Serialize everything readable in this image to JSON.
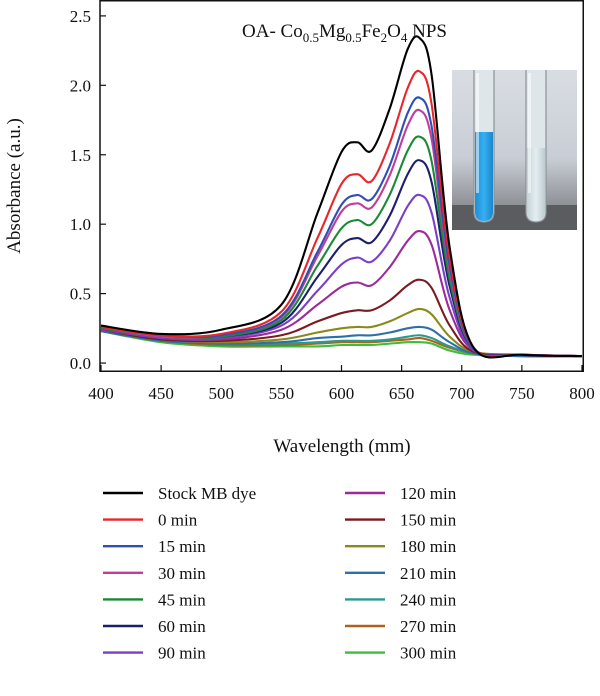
{
  "chart_data": {
    "type": "line",
    "title": "",
    "annotation": {
      "prefix": "OA- Co",
      "s1": "0.5",
      "t2": "Mg",
      "s2": "0.5",
      "t3": "Fe",
      "s3": "2",
      "t4": "O",
      "s4": "4",
      "suffix": " NPS"
    },
    "xlabel": "Wavelength (mm)",
    "ylabel": "Absorbance (a.u.)",
    "xlim": [
      400,
      800
    ],
    "ylim": [
      -0.05,
      2.6
    ],
    "xticks": [
      400,
      450,
      500,
      550,
      600,
      650,
      700,
      750,
      800
    ],
    "yticks": [
      0.0,
      0.5,
      1.0,
      1.5,
      2.0,
      2.5
    ],
    "ytick_labels": [
      "0.0",
      "0.5",
      "1.0",
      "1.5",
      "2.0",
      "2.5"
    ],
    "grid": false,
    "legend_position": "bottom",
    "inset": "photo of two test tubes: blue dye solution (left) and decolorized solution (right)",
    "x": [
      400,
      450,
      500,
      550,
      580,
      600,
      613,
      625,
      640,
      655,
      665,
      675,
      690,
      710,
      750,
      800
    ],
    "series": [
      {
        "name": "Stock MB dye",
        "color": "#000000",
        "values": [
          0.27,
          0.21,
          0.24,
          0.42,
          1.08,
          1.52,
          1.59,
          1.53,
          1.83,
          2.26,
          2.34,
          2.07,
          0.83,
          0.11,
          0.06,
          0.05
        ]
      },
      {
        "name": "0 min",
        "color": "#e8262b",
        "values": [
          0.26,
          0.2,
          0.21,
          0.37,
          0.9,
          1.29,
          1.36,
          1.31,
          1.58,
          1.98,
          2.1,
          1.86,
          0.75,
          0.11,
          0.06,
          0.05
        ]
      },
      {
        "name": "15 min",
        "color": "#2e4fb5",
        "values": [
          0.26,
          0.2,
          0.2,
          0.34,
          0.8,
          1.14,
          1.21,
          1.18,
          1.42,
          1.8,
          1.91,
          1.7,
          0.7,
          0.1,
          0.06,
          0.05
        ]
      },
      {
        "name": "30 min",
        "color": "#c23c9c",
        "values": [
          0.26,
          0.19,
          0.2,
          0.33,
          0.77,
          1.09,
          1.15,
          1.12,
          1.35,
          1.71,
          1.82,
          1.61,
          0.66,
          0.1,
          0.06,
          0.05
        ]
      },
      {
        "name": "45 min",
        "color": "#1a8a34",
        "values": [
          0.25,
          0.19,
          0.19,
          0.31,
          0.7,
          0.97,
          1.03,
          1.0,
          1.21,
          1.53,
          1.63,
          1.45,
          0.6,
          0.1,
          0.06,
          0.05
        ]
      },
      {
        "name": "60 min",
        "color": "#1c1f6e",
        "values": [
          0.25,
          0.19,
          0.19,
          0.29,
          0.62,
          0.85,
          0.9,
          0.87,
          1.06,
          1.36,
          1.46,
          1.3,
          0.55,
          0.1,
          0.06,
          0.05
        ]
      },
      {
        "name": "90 min",
        "color": "#7a3fc7",
        "values": [
          0.25,
          0.18,
          0.18,
          0.27,
          0.52,
          0.71,
          0.76,
          0.73,
          0.88,
          1.13,
          1.21,
          1.08,
          0.47,
          0.09,
          0.06,
          0.05
        ]
      },
      {
        "name": "120 min",
        "color": "#9b2a9b",
        "values": [
          0.24,
          0.18,
          0.17,
          0.24,
          0.42,
          0.55,
          0.58,
          0.56,
          0.69,
          0.88,
          0.95,
          0.85,
          0.38,
          0.09,
          0.06,
          0.05
        ]
      },
      {
        "name": "150 min",
        "color": "#7a1a22",
        "values": [
          0.24,
          0.17,
          0.16,
          0.2,
          0.3,
          0.36,
          0.38,
          0.38,
          0.45,
          0.56,
          0.6,
          0.54,
          0.27,
          0.08,
          0.06,
          0.05
        ]
      },
      {
        "name": "180 min",
        "color": "#8a8a1a",
        "values": [
          0.24,
          0.17,
          0.15,
          0.17,
          0.22,
          0.25,
          0.26,
          0.26,
          0.3,
          0.36,
          0.39,
          0.35,
          0.19,
          0.08,
          0.06,
          0.05
        ]
      },
      {
        "name": "210 min",
        "color": "#2f6fa8",
        "values": [
          0.23,
          0.16,
          0.14,
          0.15,
          0.18,
          0.19,
          0.2,
          0.2,
          0.22,
          0.25,
          0.26,
          0.24,
          0.15,
          0.07,
          0.05,
          0.05
        ]
      },
      {
        "name": "240 min",
        "color": "#2a9a8e",
        "values": [
          0.23,
          0.16,
          0.14,
          0.14,
          0.15,
          0.16,
          0.16,
          0.16,
          0.17,
          0.19,
          0.2,
          0.18,
          0.12,
          0.07,
          0.05,
          0.05
        ]
      },
      {
        "name": "270 min",
        "color": "#b0621a",
        "values": [
          0.23,
          0.16,
          0.13,
          0.13,
          0.14,
          0.15,
          0.15,
          0.15,
          0.16,
          0.17,
          0.18,
          0.16,
          0.11,
          0.07,
          0.05,
          0.05
        ]
      },
      {
        "name": "300 min",
        "color": "#3bbf3b",
        "values": [
          0.23,
          0.15,
          0.12,
          0.12,
          0.12,
          0.13,
          0.13,
          0.13,
          0.14,
          0.15,
          0.15,
          0.14,
          0.09,
          0.06,
          0.05,
          0.05
        ]
      }
    ]
  }
}
